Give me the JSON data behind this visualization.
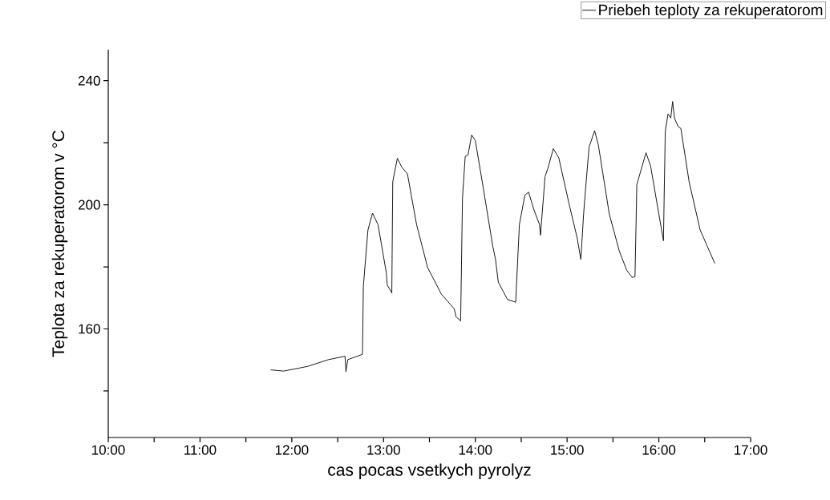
{
  "chart_data": {
    "type": "line",
    "xlabel": "cas pocas vsetkych pyrolyz",
    "ylabel": "Teplota za rekuperatorom v °C",
    "xlim": [
      10,
      17
    ],
    "ylim": [
      125,
      250
    ],
    "xticks": [
      {
        "value": 10,
        "label": "10:00"
      },
      {
        "value": 10.5,
        "label": null
      },
      {
        "value": 11,
        "label": "11:00"
      },
      {
        "value": 11.5,
        "label": null
      },
      {
        "value": 12,
        "label": "12:00"
      },
      {
        "value": 12.5,
        "label": null
      },
      {
        "value": 13,
        "label": "13:00"
      },
      {
        "value": 13.5,
        "label": null
      },
      {
        "value": 14,
        "label": "14:00"
      },
      {
        "value": 14.5,
        "label": null
      },
      {
        "value": 15,
        "label": "15:00"
      },
      {
        "value": 15.5,
        "label": null
      },
      {
        "value": 16,
        "label": "16:00"
      },
      {
        "value": 16.5,
        "label": null
      },
      {
        "value": 17,
        "label": "17:00"
      }
    ],
    "yticks": [
      {
        "value": 140,
        "label": null
      },
      160,
      {
        "value": 180,
        "label": null
      },
      200,
      {
        "value": 220,
        "label": null
      },
      240
    ],
    "legend": "top right",
    "series": [
      {
        "name": "Priebeh teploty za rekuperatorom",
        "color": "#000000",
        "x": [
          11.77,
          11.91,
          12.17,
          12.4,
          12.58,
          12.59,
          12.61,
          12.77,
          12.78,
          12.83,
          12.88,
          12.94,
          13.03,
          13.04,
          13.09,
          13.1,
          13.15,
          13.2,
          13.26,
          13.36,
          13.48,
          13.63,
          13.77,
          13.79,
          13.84,
          13.86,
          13.89,
          13.92,
          13.96,
          14.0,
          14.09,
          14.19,
          14.22,
          14.25,
          14.35,
          14.44,
          14.48,
          14.54,
          14.58,
          14.64,
          14.7,
          14.71,
          14.76,
          14.79,
          14.85,
          14.91,
          15.02,
          15.11,
          15.15,
          15.18,
          15.21,
          15.24,
          15.3,
          15.34,
          15.46,
          15.57,
          15.65,
          15.71,
          15.74,
          15.76,
          15.86,
          15.91,
          16.0,
          16.03,
          16.05,
          16.07,
          16.1,
          16.13,
          16.15,
          16.17,
          16.21,
          16.24,
          16.33,
          16.45,
          16.61
        ],
        "values": [
          146.8,
          146.4,
          147.9,
          150.1,
          151.2,
          146.2,
          150.1,
          151.8,
          173.8,
          191.9,
          197.3,
          193.6,
          178.1,
          174.2,
          171.6,
          207.4,
          215.0,
          212.1,
          210.0,
          193.6,
          179.8,
          171.2,
          166.5,
          163.9,
          162.6,
          202.2,
          215.6,
          216.0,
          222.5,
          220.7,
          204.8,
          186.7,
          182.4,
          175.1,
          169.5,
          168.6,
          193.6,
          203.1,
          204.1,
          198.3,
          193.6,
          190.2,
          209.1,
          211.7,
          218.1,
          215.1,
          200.5,
          189.3,
          182.4,
          197.0,
          208.2,
          218.6,
          223.9,
          219.4,
          197.0,
          185.0,
          178.9,
          176.6,
          176.8,
          206.5,
          216.8,
          212.5,
          197.0,
          191.9,
          188.4,
          223.7,
          229.3,
          228.0,
          233.3,
          228.0,
          225.2,
          224.6,
          207.4,
          191.9,
          181.1
        ]
      }
    ]
  }
}
